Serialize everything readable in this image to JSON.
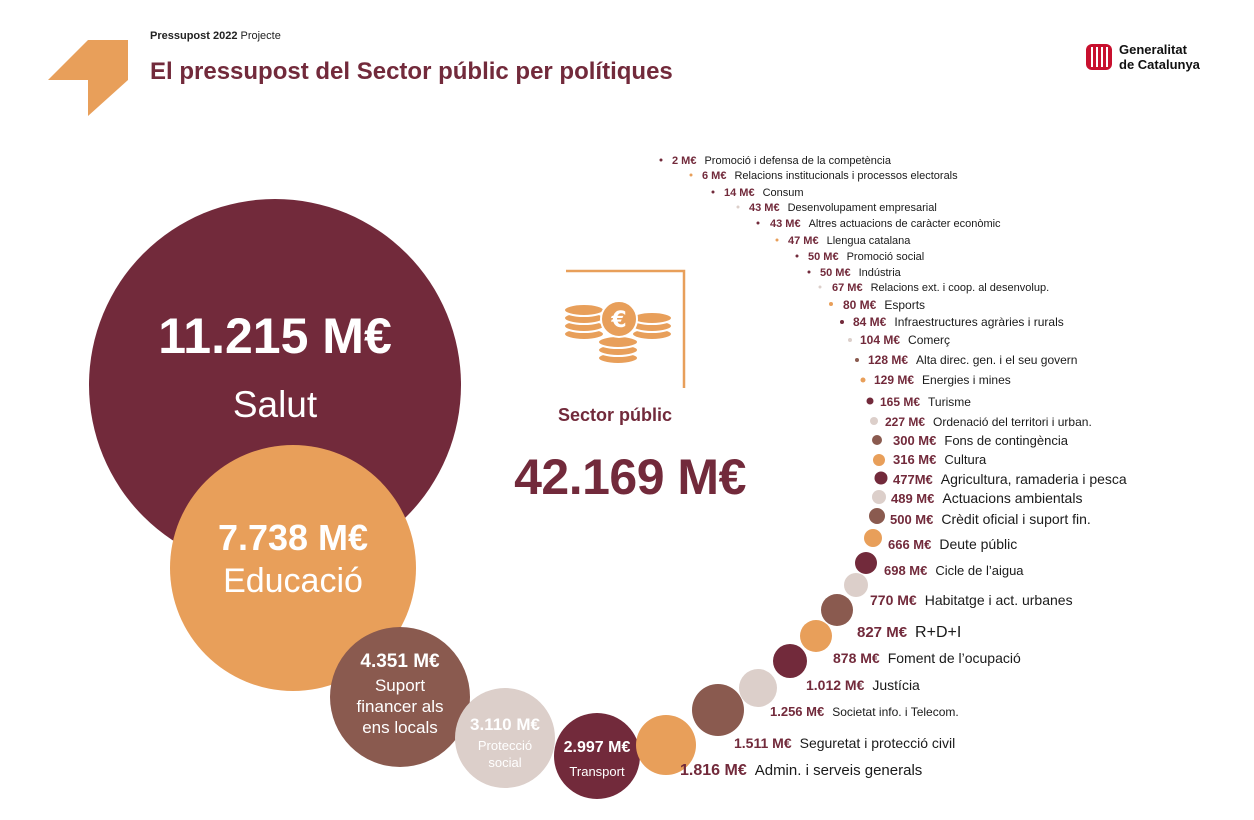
{
  "header": {
    "supertitle_bold": "Pressupost 2022",
    "supertitle_rest": "Projecte",
    "title": "El pressupost del Sector públic per polítiques"
  },
  "brand": {
    "line1": "Generalitat",
    "line2": "de Catalunya",
    "logo_icon": "senyera-logo-icon"
  },
  "center": {
    "icon": "coins-euro-icon",
    "label": "Sector públic",
    "total": "42.169 M€"
  },
  "colors": {
    "maroon": "#722a3b",
    "orange": "#e89f5a",
    "brown": "#8a5a4f",
    "beige": "#dccfca"
  },
  "chart_data": {
    "type": "bubble",
    "unit": "M€",
    "title": "El pressupost del Sector públic per polítiques",
    "total": 42169,
    "items": [
      {
        "label": "Salut",
        "value_text": "11.215 M€",
        "value": 11215,
        "color": "maroon"
      },
      {
        "label": "Educació",
        "value_text": "7.738 M€",
        "value": 7738,
        "color": "orange"
      },
      {
        "label": "Suport financer als ens locals",
        "value_text": "4.351 M€",
        "value": 4351,
        "color": "brown"
      },
      {
        "label": "Protecció social",
        "value_text": "3.110 M€",
        "value": 3110,
        "color": "beige"
      },
      {
        "label": "Transport",
        "value_text": "2.997 M€",
        "value": 2997,
        "color": "maroon"
      },
      {
        "label": "Admin. i serveis generals",
        "value_text": "1.816 M€",
        "value": 1816,
        "color": "orange"
      },
      {
        "label": "Seguretat i protecció civil",
        "value_text": "1.511 M€",
        "value": 1511,
        "color": "brown"
      },
      {
        "label": "Societat info. i Telecom.",
        "value_text": "1.256 M€",
        "value": 1256,
        "color": "beige"
      },
      {
        "label": "Justícia",
        "value_text": "1.012 M€",
        "value": 1012,
        "color": "maroon"
      },
      {
        "label": "Foment de l’ocupació",
        "value_text": "878 M€",
        "value": 878,
        "color": "orange"
      },
      {
        "label": "R+D+I",
        "value_text": "827 M€",
        "value": 827,
        "color": "brown"
      },
      {
        "label": "Habitatge i act. urbanes",
        "value_text": "770 M€",
        "value": 770,
        "color": "beige"
      },
      {
        "label": "Cicle de l’aigua",
        "value_text": "698 M€",
        "value": 698,
        "color": "maroon"
      },
      {
        "label": "Deute públic",
        "value_text": "666 M€",
        "value": 666,
        "color": "orange"
      },
      {
        "label": "Crèdit oficial i suport fin.",
        "value_text": "500 M€",
        "value": 500,
        "color": "brown"
      },
      {
        "label": "Actuacions ambientals",
        "value_text": "489 M€",
        "value": 489,
        "color": "beige"
      },
      {
        "label": "Agricultura, ramaderia i pesca",
        "value_text": "477M€",
        "value": 477,
        "color": "maroon"
      },
      {
        "label": "Cultura",
        "value_text": "316 M€",
        "value": 316,
        "color": "orange"
      },
      {
        "label": "Fons de contingència",
        "value_text": "300 M€",
        "value": 300,
        "color": "brown"
      },
      {
        "label": "Ordenació del territori i urban.",
        "value_text": "227 M€",
        "value": 227,
        "color": "beige"
      },
      {
        "label": "Turisme",
        "value_text": "165 M€",
        "value": 165,
        "color": "maroon"
      },
      {
        "label": "Energies i mines",
        "value_text": "129 M€",
        "value": 129,
        "color": "orange"
      },
      {
        "label": "Alta direc. gen. i el seu govern",
        "value_text": "128 M€",
        "value": 128,
        "color": "brown"
      },
      {
        "label": "Comerç",
        "value_text": "104 M€",
        "value": 104,
        "color": "beige"
      },
      {
        "label": "Infraestructures agràries i rurals",
        "value_text": "84 M€",
        "value": 84,
        "color": "maroon"
      },
      {
        "label": "Esports",
        "value_text": "80 M€",
        "value": 80,
        "color": "orange"
      },
      {
        "label": "Relacions ext. i coop. al desenvolup.",
        "value_text": "67 M€",
        "value": 67,
        "color": "beige"
      },
      {
        "label": "Indústria",
        "value_text": "50 M€",
        "value": 50,
        "color": "maroon"
      },
      {
        "label": "Promoció social",
        "value_text": "50 M€",
        "value": 50,
        "color": "maroon"
      },
      {
        "label": "Llengua catalana",
        "value_text": "47 M€",
        "value": 47,
        "color": "orange"
      },
      {
        "label": "Altres actuacions de caràcter econòmic",
        "value_text": "43 M€",
        "value": 43,
        "color": "maroon"
      },
      {
        "label": "Desenvolupament empresarial",
        "value_text": "43 M€",
        "value": 43,
        "color": "beige"
      },
      {
        "label": "Consum",
        "value_text": "14 M€",
        "value": 14,
        "color": "maroon"
      },
      {
        "label": "Relacions institucionals i processos electorals",
        "value_text": "6 M€",
        "value": 6,
        "color": "orange"
      },
      {
        "label": "Promoció i defensa de la competència",
        "value_text": "2 M€",
        "value": 2,
        "color": "maroon"
      }
    ]
  }
}
